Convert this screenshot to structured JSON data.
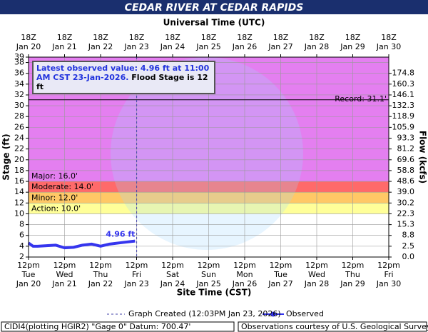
{
  "chart_data": {
    "type": "line",
    "title": "CEDAR RIVER AT CEDAR RAPIDS",
    "x_label": "Site Time (CST)",
    "x2_label": "Universal Time (UTC)",
    "y_label": "Stage (ft)",
    "y2_label": "Flow (kcfs)",
    "xlim": [
      "2026-01-20T12:00",
      "2026-01-30T12:00"
    ],
    "xticks": [
      {
        "value": "2026-01-20T12:00",
        "label": "12pm\nTue\nJan 20"
      },
      {
        "value": "2026-01-21T12:00",
        "label": "12pm\nWed\nJan 21"
      },
      {
        "value": "2026-01-22T12:00",
        "label": "12pm\nThu\nJan 22"
      },
      {
        "value": "2026-01-23T12:00",
        "label": "12pm\nFri\nJan 23"
      },
      {
        "value": "2026-01-24T12:00",
        "label": "12pm\nSat\nJan 24"
      },
      {
        "value": "2026-01-25T12:00",
        "label": "12pm\nSun\nJan 25"
      },
      {
        "value": "2026-01-26T12:00",
        "label": "12pm\nMon\nJan 26"
      },
      {
        "value": "2026-01-27T12:00",
        "label": "12pm\nTue\nJan 27"
      },
      {
        "value": "2026-01-28T12:00",
        "label": "12pm\nWed\nJan 28"
      },
      {
        "value": "2026-01-29T12:00",
        "label": "12pm\nThu\nJan 29"
      },
      {
        "value": "2026-01-30T12:00",
        "label": "12pm\nFri\nJan 30"
      }
    ],
    "x2ticks": [
      {
        "value": "2026-01-20T12:00",
        "label": "18Z\nJan 20"
      },
      {
        "value": "2026-01-21T12:00",
        "label": "18Z\nJan 21"
      },
      {
        "value": "2026-01-22T12:00",
        "label": "18Z\nJan 22"
      },
      {
        "value": "2026-01-23T12:00",
        "label": "18Z\nJan 23"
      },
      {
        "value": "2026-01-24T12:00",
        "label": "18Z\nJan 24"
      },
      {
        "value": "2026-01-25T12:00",
        "label": "18Z\nJan 25"
      },
      {
        "value": "2026-01-26T12:00",
        "label": "18Z\nJan 26"
      },
      {
        "value": "2026-01-27T12:00",
        "label": "18Z\nJan 27"
      },
      {
        "value": "2026-01-28T12:00",
        "label": "18Z\nJan 28"
      },
      {
        "value": "2026-01-29T12:00",
        "label": "18Z\nJan 29"
      },
      {
        "value": "2026-01-30T12:00",
        "label": "18Z\nJan 30"
      }
    ],
    "ylim": [
      2,
      39
    ],
    "yticks": [
      2,
      4,
      6,
      8,
      10,
      12,
      14,
      16,
      18,
      20,
      22,
      24,
      26,
      28,
      30,
      32,
      34,
      36,
      38,
      39
    ],
    "y2ticks": [
      {
        "value": 0,
        "label": "0.0"
      },
      2.5,
      8.8,
      15.3,
      22.3,
      30.2,
      {
        "value": 39,
        "label": "39.0"
      },
      48.6,
      58.8,
      69.6,
      81.2,
      93.3,
      105.9,
      118.9,
      132.3,
      146.1,
      160.3,
      174.8
    ],
    "grid": true,
    "flood_categories": [
      {
        "label": "Action: 10.0'",
        "value": 10,
        "color": "#ffff99"
      },
      {
        "label": "Minor: 12.0'",
        "value": 12,
        "color": "#ffc866"
      },
      {
        "label": "Moderate: 14.0'",
        "value": 14,
        "color": "#ff6a6a"
      },
      {
        "label": "Major: 16.0'",
        "value": 16,
        "color": "#e47ff0"
      }
    ],
    "record": {
      "label": "Record: 31.1'",
      "value": 31.1
    },
    "latest_text": "Latest observed value: 4.96 ft at 11:00 AM CST 23-Jan-2026.",
    "flood_stage_text": "Flood Stage is 12 ft",
    "created": {
      "x": "2026-01-23T12:03",
      "label": "Graph Created (12:03PM Jan 23, 2026)"
    },
    "x": [
      "2026-01-20T12:00",
      "2026-01-20T15:00",
      "2026-01-20T18:00",
      "2026-01-21T00:00",
      "2026-01-21T06:00",
      "2026-01-21T12:00",
      "2026-01-21T18:00",
      "2026-01-22T00:00",
      "2026-01-22T06:00",
      "2026-01-22T12:00",
      "2026-01-22T18:00",
      "2026-01-23T00:00",
      "2026-01-23T06:00",
      "2026-01-23T11:00"
    ],
    "series": [
      {
        "name": "Observed",
        "color": "#3535ee",
        "values": [
          4.6,
          4.0,
          4.0,
          4.1,
          4.2,
          3.7,
          3.8,
          4.2,
          4.4,
          4.0,
          4.4,
          4.6,
          4.8,
          4.96
        ],
        "value_labels": [
          null,
          null,
          null,
          null,
          null,
          null,
          null,
          null,
          null,
          null,
          null,
          null,
          null,
          "4.96 ft"
        ]
      }
    ],
    "footer_left": "CIDI4(plotting HGIR2) \"Gage 0\" Datum: 700.47'",
    "footer_right": "Observations courtesy of U.S. Geological Survey"
  }
}
